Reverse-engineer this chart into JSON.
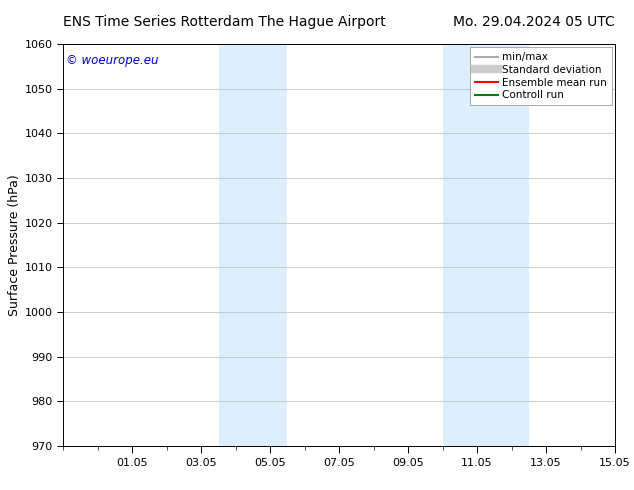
{
  "title_left": "ENS Time Series Rotterdam The Hague Airport",
  "title_right": "Mo. 29.04.2024 05 UTC",
  "ylabel": "Surface Pressure (hPa)",
  "ylim": [
    970,
    1060
  ],
  "yticks": [
    970,
    980,
    990,
    1000,
    1010,
    1020,
    1030,
    1040,
    1050,
    1060
  ],
  "x_min": 0.0,
  "x_max": 16.0,
  "xtick_labels": [
    "01.05",
    "03.05",
    "05.05",
    "07.05",
    "09.05",
    "11.05",
    "13.05",
    "15.05"
  ],
  "xtick_positions": [
    2,
    4,
    6,
    8,
    10,
    12,
    14,
    16
  ],
  "shaded_regions": [
    {
      "x_start": 4.5,
      "x_end": 6.5,
      "color": "#ddeeff"
    },
    {
      "x_start": 11.0,
      "x_end": 13.5,
      "color": "#ddeeff"
    }
  ],
  "watermark": "© woeurope.eu",
  "watermark_color": "#0000cc",
  "legend_items": [
    {
      "label": "min/max",
      "color": "#aaaaaa",
      "lw": 1.5
    },
    {
      "label": "Standard deviation",
      "color": "#cccccc",
      "lw": 6
    },
    {
      "label": "Ensemble mean run",
      "color": "#ff0000",
      "lw": 1.5
    },
    {
      "label": "Controll run",
      "color": "#008000",
      "lw": 1.5
    }
  ],
  "background_color": "#ffffff",
  "grid_color": "#bbbbbb",
  "title_fontsize": 10,
  "tick_fontsize": 8,
  "ylabel_fontsize": 9,
  "watermark_fontsize": 8.5,
  "legend_fontsize": 7.5
}
